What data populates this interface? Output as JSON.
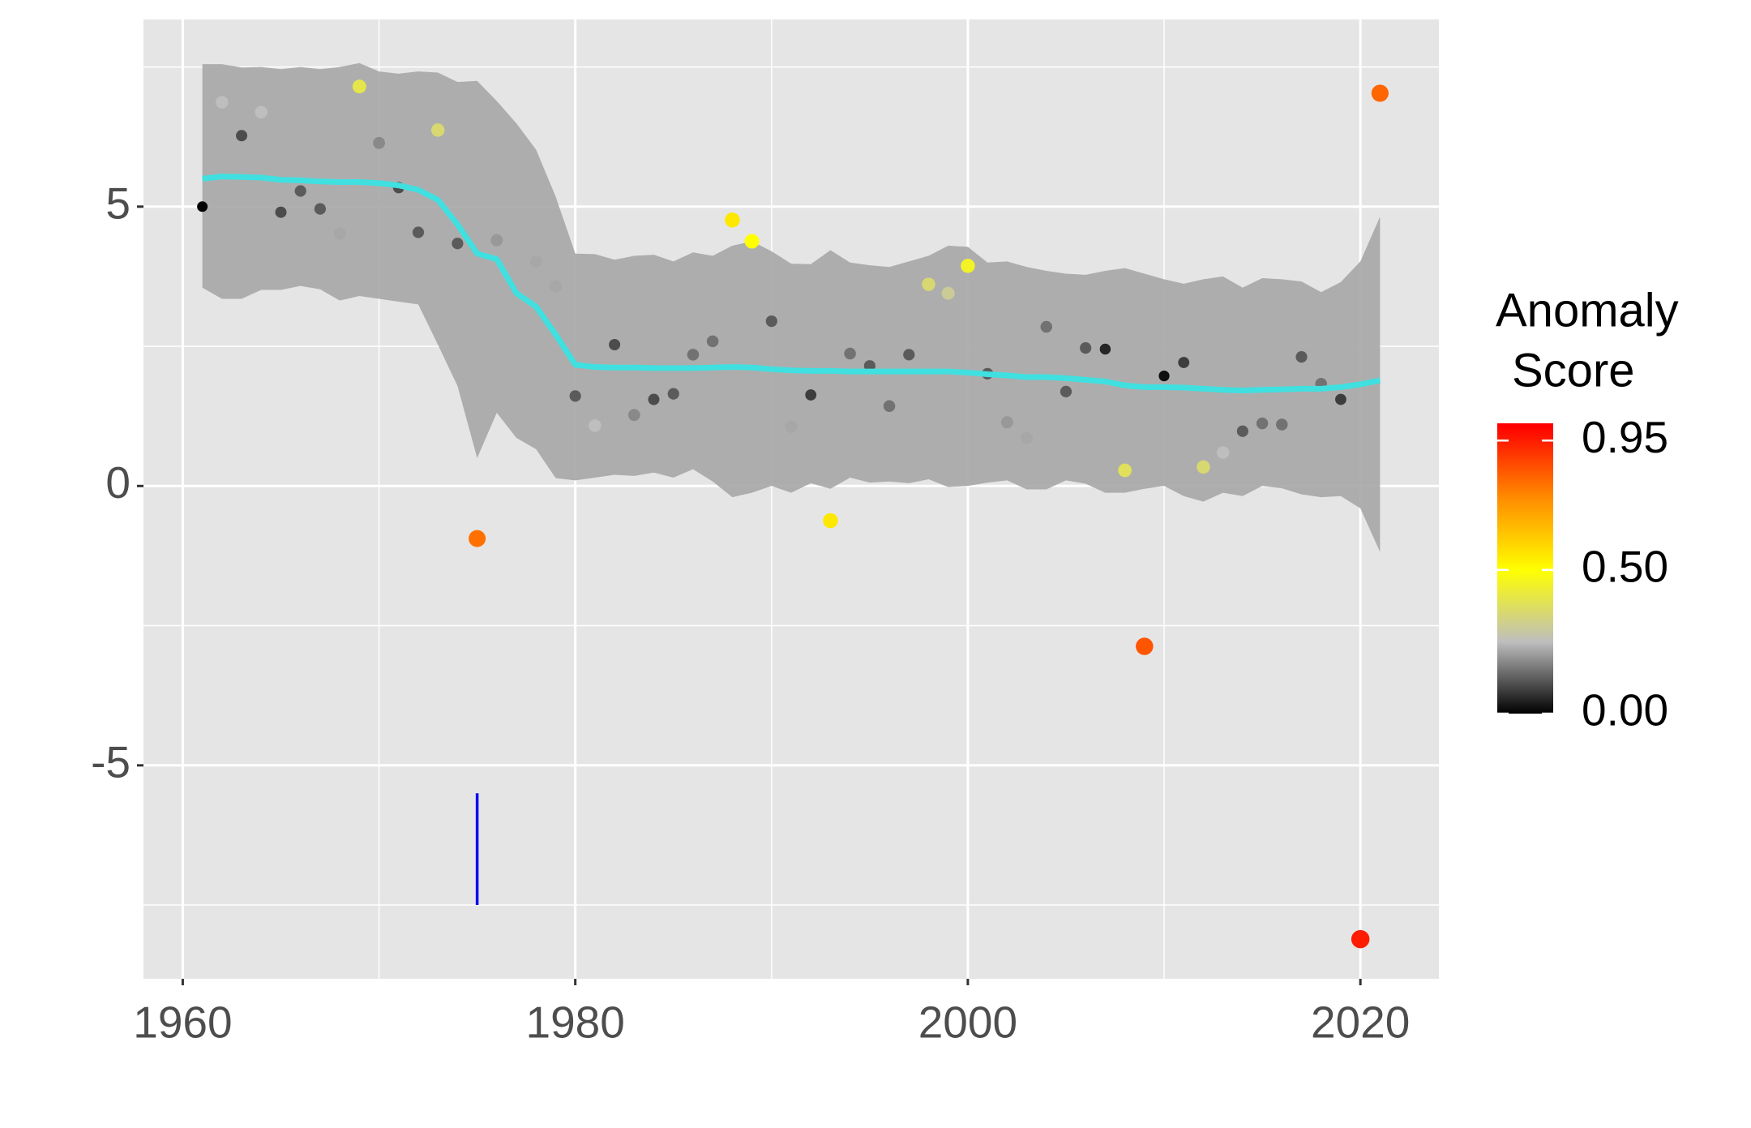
{
  "chart_data": {
    "type": "scatter",
    "xlim": [
      1958,
      2024
    ],
    "ylim": [
      -8.82,
      8.35
    ],
    "xticks": [
      1960,
      1980,
      2000,
      2020
    ],
    "yticks": [
      -5,
      0,
      5
    ],
    "x_minor_ticks": [
      1970,
      1990,
      2010
    ],
    "y_minor_ticks": [
      -7.5,
      -2.5,
      2.5,
      7.5
    ],
    "grid": true,
    "x": [
      1961,
      1962,
      1963,
      1964,
      1965,
      1966,
      1967,
      1968,
      1969,
      1970,
      1971,
      1972,
      1973,
      1974,
      1975,
      1976,
      1977,
      1978,
      1979,
      1980,
      1981,
      1982,
      1983,
      1984,
      1985,
      1986,
      1987,
      1988,
      1989,
      1990,
      1991,
      1992,
      1993,
      1994,
      1995,
      1996,
      1997,
      1998,
      1999,
      2000,
      2001,
      2002,
      2003,
      2004,
      2005,
      2006,
      2007,
      2008,
      2009,
      2010,
      2011,
      2012,
      2013,
      2014,
      2015,
      2016,
      2017,
      2018,
      2019,
      2020,
      2021
    ],
    "points": {
      "values": [
        5.0,
        6.87,
        6.27,
        6.69,
        4.9,
        5.28,
        4.96,
        4.52,
        7.15,
        6.14,
        5.34,
        4.54,
        6.37,
        4.34,
        -0.94,
        4.4,
        null,
        4.02,
        3.57,
        1.61,
        1.08,
        2.53,
        1.27,
        1.55,
        1.65,
        2.35,
        2.59,
        4.76,
        4.38,
        2.95,
        1.06,
        1.63,
        -0.62,
        2.37,
        2.15,
        1.43,
        2.35,
        3.61,
        3.45,
        3.94,
        2.01,
        1.14,
        0.86,
        2.85,
        1.69,
        2.47,
        2.45,
        0.28,
        -2.87,
        1.97,
        2.21,
        0.34,
        0.6,
        0.98,
        1.12,
        1.1,
        2.31,
        1.83,
        1.55,
        -8.11,
        7.03
      ],
      "scores": [
        0.0,
        0.25,
        0.1,
        0.25,
        0.1,
        0.12,
        0.12,
        0.22,
        0.4,
        0.18,
        0.1,
        0.12,
        0.35,
        0.12,
        0.8,
        0.2,
        null,
        0.22,
        0.22,
        0.12,
        0.25,
        0.1,
        0.18,
        0.1,
        0.12,
        0.15,
        0.15,
        0.55,
        0.5,
        0.12,
        0.22,
        0.08,
        0.55,
        0.15,
        0.12,
        0.15,
        0.12,
        0.35,
        0.3,
        0.45,
        0.12,
        0.2,
        0.22,
        0.15,
        0.12,
        0.12,
        0.05,
        0.38,
        0.85,
        0.02,
        0.08,
        0.35,
        0.25,
        0.12,
        0.15,
        0.15,
        0.12,
        0.15,
        0.08,
        0.95,
        0.82
      ]
    },
    "smooth": {
      "color": "#40e0e0",
      "values": [
        5.5,
        5.54,
        5.53,
        5.52,
        5.48,
        5.47,
        5.45,
        5.44,
        5.44,
        5.42,
        5.38,
        5.3,
        5.12,
        4.68,
        4.16,
        4.06,
        3.45,
        3.21,
        2.71,
        2.17,
        2.13,
        2.12,
        2.12,
        2.11,
        2.11,
        2.11,
        2.12,
        2.13,
        2.12,
        2.09,
        2.07,
        2.06,
        2.06,
        2.05,
        2.05,
        2.05,
        2.05,
        2.05,
        2.05,
        2.03,
        2.0,
        1.98,
        1.95,
        1.95,
        1.93,
        1.9,
        1.87,
        1.8,
        1.77,
        1.77,
        1.76,
        1.74,
        1.72,
        1.71,
        1.72,
        1.73,
        1.74,
        1.74,
        1.77,
        1.82,
        1.89
      ]
    },
    "band": {
      "color": "#a6a6a6",
      "upper": [
        7.55,
        7.55,
        7.49,
        7.5,
        7.46,
        7.5,
        7.46,
        7.5,
        7.57,
        7.42,
        7.38,
        7.42,
        7.4,
        7.23,
        7.25,
        6.89,
        6.49,
        6.02,
        5.18,
        4.16,
        4.15,
        4.05,
        4.12,
        4.14,
        4.02,
        4.18,
        4.12,
        4.3,
        4.38,
        4.2,
        3.98,
        3.97,
        4.22,
        4.0,
        3.95,
        3.92,
        4.02,
        4.12,
        4.3,
        4.28,
        4.0,
        4.02,
        3.92,
        3.85,
        3.8,
        3.78,
        3.85,
        3.9,
        3.8,
        3.7,
        3.62,
        3.7,
        3.75,
        3.55,
        3.72,
        3.7,
        3.66,
        3.47,
        3.65,
        4.02,
        4.82
      ],
      "lower": [
        3.55,
        3.35,
        3.35,
        3.51,
        3.51,
        3.58,
        3.52,
        3.32,
        3.4,
        3.35,
        3.3,
        3.25,
        2.53,
        1.79,
        0.5,
        1.31,
        0.86,
        0.66,
        0.14,
        0.1,
        0.15,
        0.2,
        0.18,
        0.24,
        0.15,
        0.3,
        0.08,
        -0.2,
        -0.12,
        0.0,
        -0.12,
        0.05,
        -0.05,
        0.15,
        0.06,
        0.08,
        0.05,
        0.12,
        -0.02,
        0.0,
        0.06,
        0.1,
        -0.06,
        -0.06,
        0.1,
        0.04,
        -0.12,
        -0.12,
        -0.05,
        0.0,
        -0.18,
        -0.28,
        -0.12,
        -0.18,
        0.0,
        -0.04,
        -0.15,
        -0.2,
        -0.18,
        -0.4,
        -1.18
      ]
    },
    "segment": {
      "x": 1975,
      "y0": -5.5,
      "y1": -7.5,
      "color": "#0000ee"
    },
    "legend_title": [
      "Anomaly",
      "Score"
    ],
    "colorscale": [
      [
        0,
        "#000000"
      ],
      [
        0.25,
        "#bebebe"
      ],
      [
        0.5,
        "#ffff00"
      ],
      [
        0.75,
        "#ff8c00"
      ],
      [
        1,
        "#ff0000"
      ]
    ],
    "colorlim": [
      0,
      1.01
    ],
    "colorticks": [
      {
        "value": 0,
        "label": "0.00"
      },
      {
        "value": 0.5,
        "label": "0.50"
      },
      {
        "value": 0.95,
        "label": "0.95"
      }
    ]
  }
}
